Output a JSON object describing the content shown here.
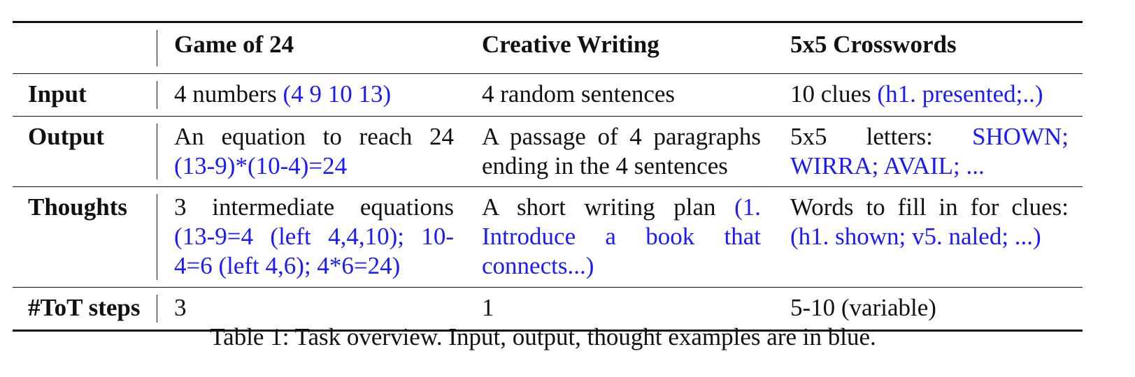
{
  "table": {
    "columns": [
      "",
      "Game of 24",
      "Creative Writing",
      "5x5 Crosswords"
    ],
    "rows": [
      {
        "label": "Input",
        "cells": [
          {
            "plain": "4 numbers ",
            "blue": "(4 9 10 13)"
          },
          {
            "plain": "4 random sentences",
            "blue": ""
          },
          {
            "plain": "10 clues ",
            "blue": "(h1. presented;..)"
          }
        ]
      },
      {
        "label": "Output",
        "cells": [
          {
            "plain": "An equation to reach 24 ",
            "blue": "(13-9)*(10-4)=24"
          },
          {
            "plain": "A passage of 4 paragraphs ending in the 4 sentences",
            "blue": ""
          },
          {
            "plain": "5x5 letters: ",
            "blue": "SHOWN; WIRRA; AVAIL; ..."
          }
        ]
      },
      {
        "label": "Thoughts",
        "cells": [
          {
            "plain": "3 intermediate equations ",
            "blue": "(13-9=4 (left 4,4,10); 10-4=6 (left 4,6); 4*6=24)"
          },
          {
            "plain": "A short writing plan ",
            "blue": "(1. Introduce a book that connects...)"
          },
          {
            "plain": "Words to fill in for clues: ",
            "blue": "(h1. shown; v5. naled; ...)"
          }
        ]
      },
      {
        "label": "#ToT steps",
        "cells": [
          {
            "plain": "3",
            "blue": ""
          },
          {
            "plain": "1",
            "blue": ""
          },
          {
            "plain": "5-10 (variable)",
            "blue": ""
          }
        ]
      }
    ]
  },
  "caption": "Table 1: Task overview. Input, output, thought examples are in blue.",
  "colors": {
    "example_text": "#1a1aff",
    "text": "#111111"
  }
}
